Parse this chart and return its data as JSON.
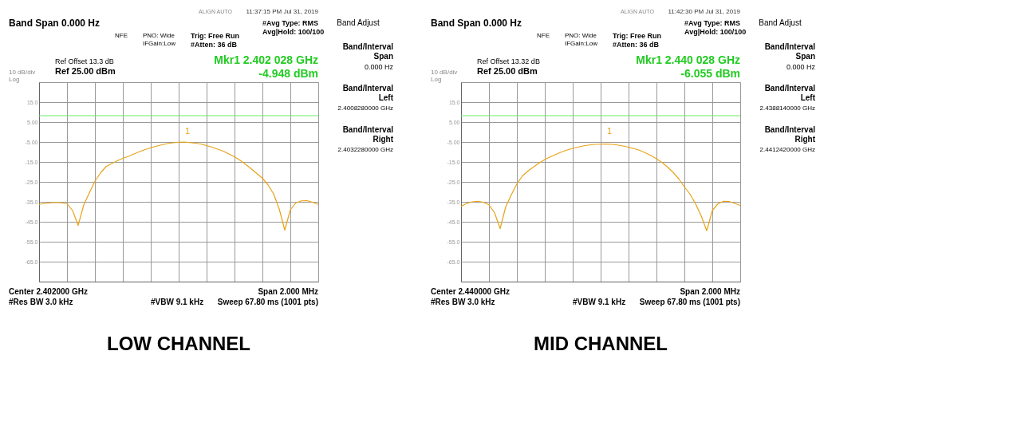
{
  "chart_data": [
    {
      "type": "line",
      "title": "LOW CHANNEL",
      "categories": [
        null,
        null,
        null,
        null,
        null,
        null,
        null,
        null,
        null,
        null,
        null,
        null,
        null,
        null,
        null,
        null,
        null,
        null,
        null,
        null,
        null,
        null,
        null,
        null,
        null,
        null,
        null,
        null,
        null,
        null,
        null,
        null,
        null,
        null,
        null,
        null,
        null,
        null,
        null,
        null,
        null,
        null,
        null,
        null,
        null,
        null,
        null,
        null,
        null,
        null,
        null
      ],
      "series": [
        {
          "color": "#e8a317",
          "values": [
            -36.3,
            -35.8,
            -35.5,
            -35.3,
            -35.5,
            -35.9,
            -39.4,
            -46.8,
            -36.5,
            -30.5,
            -24.7,
            -20.5,
            -17.3,
            -15.8,
            -14.4,
            -13.2,
            -12.2,
            -11.0,
            -9.8,
            -8.8,
            -7.9,
            -7.1,
            -6.4,
            -5.8,
            -5.4,
            -5.1,
            -5.0,
            -5.3,
            -5.6,
            -6.0,
            -6.8,
            -7.6,
            -8.6,
            -9.6,
            -11.0,
            -12.4,
            -14.2,
            -16.2,
            -18.5,
            -20.8,
            -23.2,
            -26.5,
            -31.0,
            -38.5,
            -49.2,
            -39.0,
            -35.5,
            -34.5,
            -34.4,
            -35.2,
            -36.3
          ]
        }
      ],
      "ylim": [
        -75,
        25
      ],
      "yticks": [
        {
          "value": 25,
          "label": null
        },
        {
          "value": 15,
          "label": "15.0"
        },
        {
          "value": 5,
          "label": "5.00"
        },
        {
          "value": -5,
          "label": "-5.00"
        },
        {
          "value": -15,
          "label": "-15.0"
        },
        {
          "value": -25,
          "label": "-25.0"
        },
        {
          "value": -35,
          "label": "-35.0"
        },
        {
          "value": -45,
          "label": "-45.0"
        },
        {
          "value": -55,
          "label": "-55.0"
        },
        {
          "value": -65,
          "label": "-65.0"
        },
        {
          "value": -75,
          "label": null
        }
      ],
      "grid": true,
      "ref_lines": [
        {
          "axis": "y",
          "value": 8.2,
          "color": "#66ee66"
        }
      ],
      "annotations": [
        "Band Span 0.000 Hz",
        "NFE",
        "PNO: Wide",
        "IFGain:Low",
        "Trig: Free Run",
        "#Atten: 36 dB",
        "#Avg Type: RMS",
        "Avg|Hold: 100/100",
        "11:37:15 PM Jul 31, 2019",
        "Ref Offset 13.3 dB",
        "Ref 25.00 dBm",
        "10 dB/div",
        "Log",
        "Mkr1 2.402 028 GHz",
        "-4.948 dBm",
        "Center 2.402000 GHz",
        "Span 2.000 MHz",
        "#Res BW 3.0 kHz",
        "#VBW 9.1 kHz",
        "Sweep  67.80 ms (1001 pts)",
        "Band Adjust",
        "Band/Interval",
        "Span",
        "0.000 Hz",
        "Band/Interval",
        "Left",
        "2.4008280000 GHz",
        "Band/Interval",
        "Right",
        "2.4032280000 GHz",
        "ALIGN AUTO",
        "1"
      ]
    },
    {
      "type": "line",
      "title": "MID CHANNEL",
      "categories": [
        null,
        null,
        null,
        null,
        null,
        null,
        null,
        null,
        null,
        null,
        null,
        null,
        null,
        null,
        null,
        null,
        null,
        null,
        null,
        null,
        null,
        null,
        null,
        null,
        null,
        null,
        null,
        null,
        null,
        null,
        null,
        null,
        null,
        null,
        null,
        null,
        null,
        null,
        null,
        null,
        null,
        null,
        null,
        null,
        null,
        null,
        null,
        null,
        null,
        null,
        null
      ],
      "series": [
        {
          "color": "#e8a317",
          "values": [
            -37.3,
            -35.8,
            -35.0,
            -34.7,
            -35.2,
            -36.5,
            -40.5,
            -48.4,
            -37.5,
            -31.5,
            -26.0,
            -22.0,
            -19.5,
            -17.5,
            -15.5,
            -13.8,
            -12.4,
            -11.2,
            -10.0,
            -9.0,
            -8.2,
            -7.5,
            -6.9,
            -6.5,
            -6.2,
            -6.1,
            -6.0,
            -6.2,
            -6.5,
            -7.0,
            -7.6,
            -8.3,
            -9.2,
            -10.4,
            -11.8,
            -13.4,
            -15.3,
            -17.6,
            -20.3,
            -23.5,
            -27.5,
            -31.1,
            -36.0,
            -42.0,
            -49.5,
            -39.4,
            -36.0,
            -34.7,
            -34.8,
            -35.8,
            -36.8
          ]
        }
      ],
      "ylim": [
        -75,
        25
      ],
      "yticks": [
        {
          "value": 25,
          "label": null
        },
        {
          "value": 15,
          "label": "15.0"
        },
        {
          "value": 5,
          "label": "5.00"
        },
        {
          "value": -5,
          "label": "-5.00"
        },
        {
          "value": -15,
          "label": "-15.0"
        },
        {
          "value": -25,
          "label": "-25.0"
        },
        {
          "value": -35,
          "label": "-35.0"
        },
        {
          "value": -45,
          "label": "-45.0"
        },
        {
          "value": -55,
          "label": "-55.0"
        },
        {
          "value": -65,
          "label": "-65.0"
        },
        {
          "value": -75,
          "label": null
        }
      ],
      "grid": true,
      "ref_lines": [
        {
          "axis": "y",
          "value": 8.2,
          "color": "#66ee66"
        }
      ],
      "annotations": [
        "Band Span 0.000 Hz",
        "NFE",
        "PNO: Wide",
        "IFGain:Low",
        "Trig: Free Run",
        "#Atten: 36 dB",
        "#Avg Type: RMS",
        "Avg|Hold: 100/100",
        "11:42:30 PM Jul 31, 2019",
        "Ref Offset 13.32 dB",
        "Ref 25.00 dBm",
        "10 dB/div",
        "Log",
        "Mkr1 2.440 028 GHz",
        "-6.055 dBm",
        "Center 2.440000 GHz",
        "Span 2.000 MHz",
        "#Res BW 3.0 kHz",
        "#VBW 9.1 kHz",
        "Sweep  67.80 ms (1001 pts)",
        "Band Adjust",
        "Band/Interval",
        "Span",
        "0.000 Hz",
        "Band/Interval",
        "Left",
        "2.4388140000 GHz",
        "Band/Interval",
        "Right",
        "2.4412420000 GHz",
        "ALIGN AUTO",
        "1"
      ]
    }
  ]
}
